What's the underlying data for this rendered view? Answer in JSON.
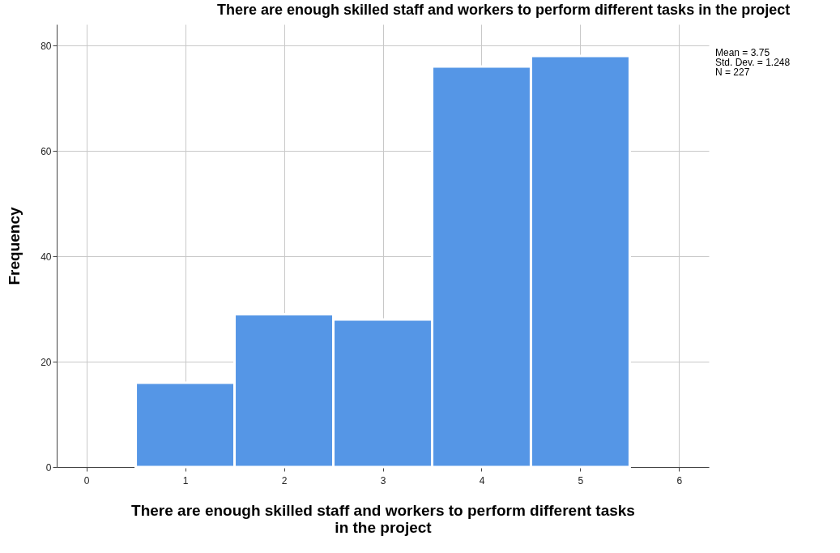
{
  "chart_data": {
    "type": "histogram",
    "title": "There are enough skilled staff and workers to perform different tasks in the project",
    "xlabel": "There are enough skilled staff and workers to perform different tasks in the project",
    "ylabel": "Frequency",
    "bins": [
      0.5,
      1.5,
      2.5,
      3.5,
      4.5,
      5.5
    ],
    "values": [
      16,
      29,
      28,
      76,
      78
    ],
    "color": "#5596e6",
    "xlim": [
      -0.3,
      6.3
    ],
    "xticks": [
      0,
      1,
      2,
      3,
      4,
      5,
      6
    ],
    "ylim": [
      0,
      84
    ],
    "yticks": [
      0,
      20,
      40,
      60,
      80
    ],
    "grid": true,
    "annotations": [
      "Mean = 3.75",
      "Std. Dev. = 1.248",
      "N = 227"
    ]
  }
}
